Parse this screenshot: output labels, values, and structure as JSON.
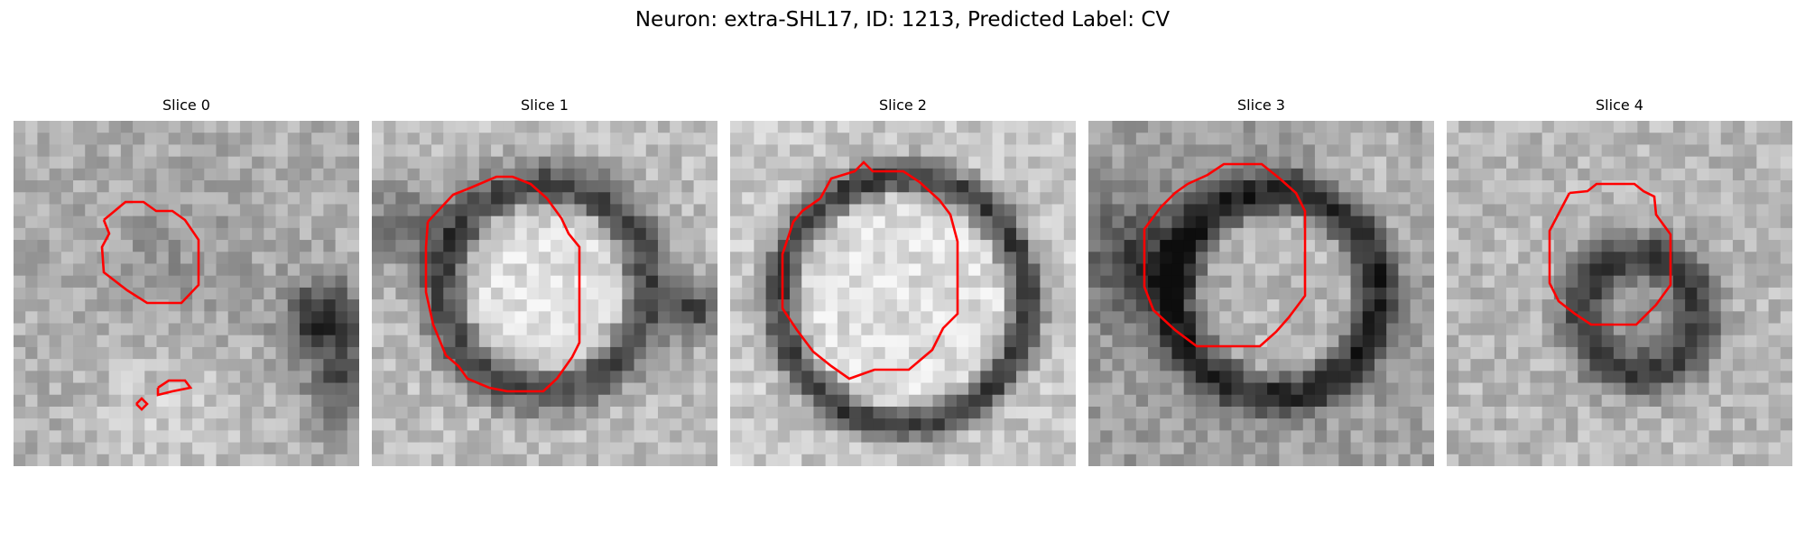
{
  "figure": {
    "title": "Neuron: extra-SHL17, ID: 1213, Predicted Label: CV",
    "contour_color": "#ff0000"
  },
  "panels": [
    {
      "title": "Slice 0"
    },
    {
      "title": "Slice 1"
    },
    {
      "title": "Slice 2"
    },
    {
      "title": "Slice 3"
    },
    {
      "title": "Slice 4"
    }
  ]
}
